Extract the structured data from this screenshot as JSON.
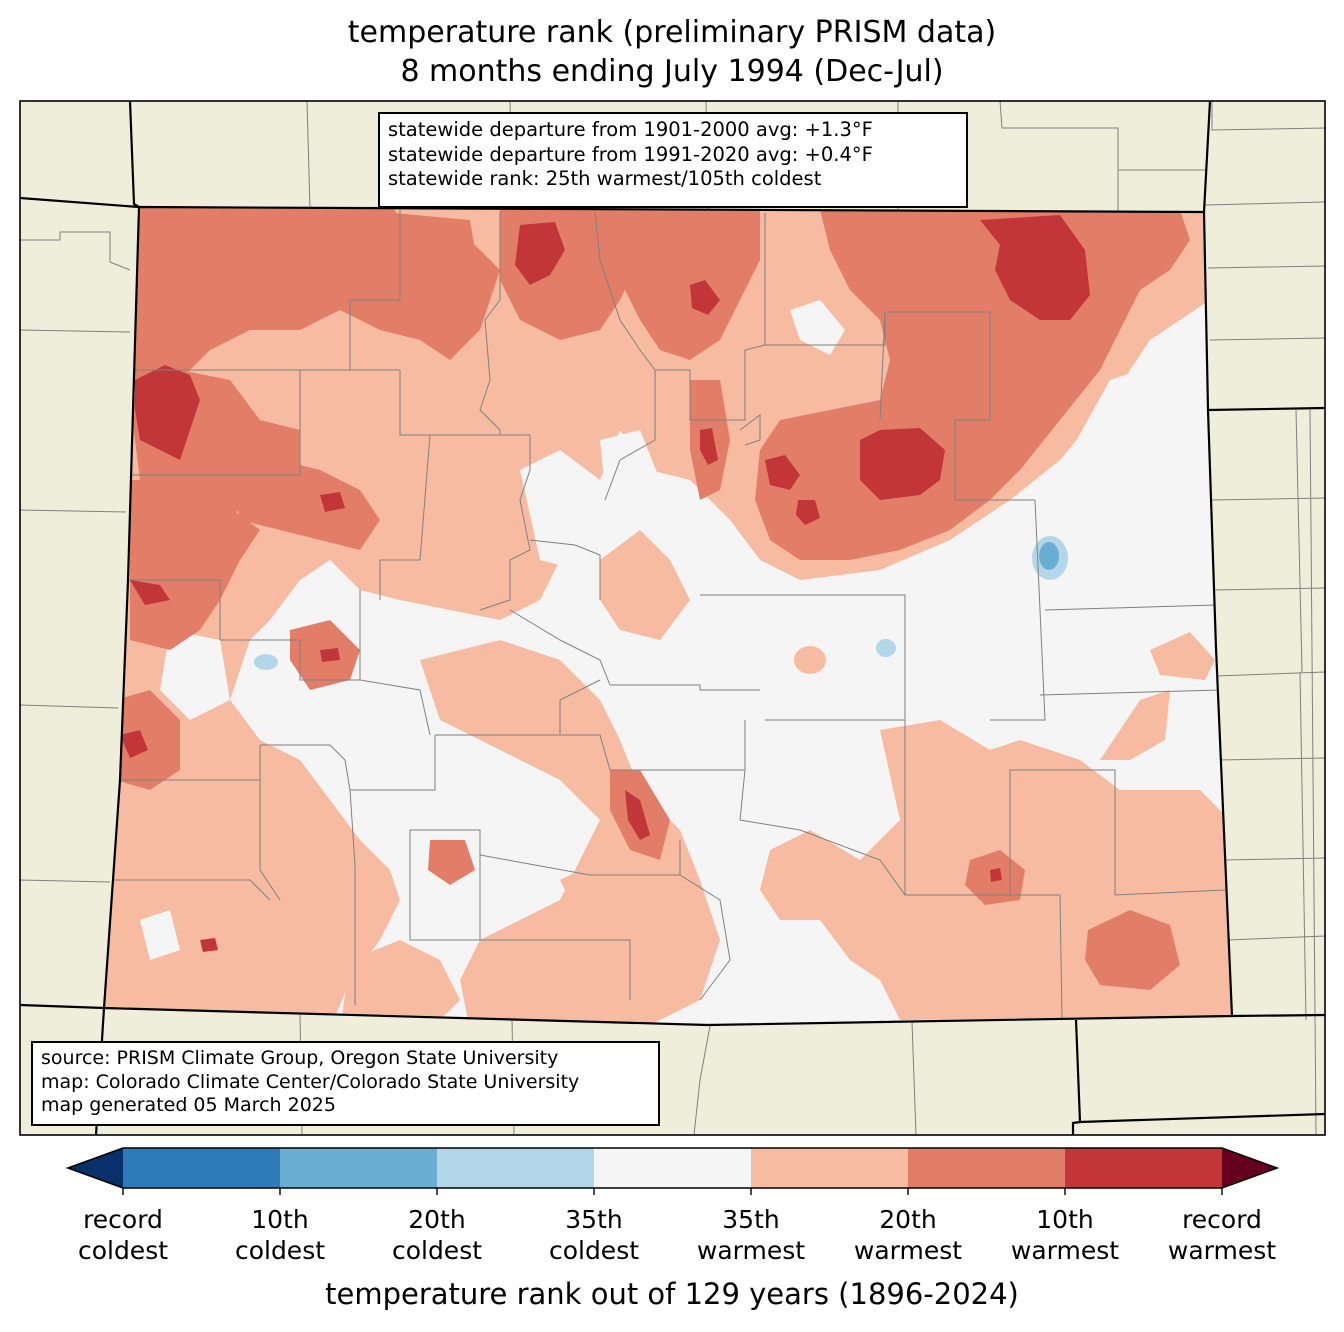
{
  "title": {
    "line1": "temperature rank (preliminary PRISM data)",
    "line2": "8 months ending July 1994 (Dec-Jul)"
  },
  "stats_box": {
    "line1": "statewide departure from 1901-2000 avg: +1.3°F",
    "line2": "statewide departure from 1991-2020 avg: +0.4°F",
    "line3": "statewide rank: 25th warmest/105th coldest"
  },
  "source_box": {
    "line1": "source: PRISM Climate Group, Oregon State University",
    "line2": "map: Colorado Climate Center/Colorado State University",
    "line3": "map generated 05 March 2025"
  },
  "colorbar": {
    "axis_label": "temperature rank out of 129 years (1896-2024)",
    "ticks": [
      {
        "l1": "record",
        "l2": "coldest"
      },
      {
        "l1": "10th",
        "l2": "coldest"
      },
      {
        "l1": "20th",
        "l2": "coldest"
      },
      {
        "l1": "35th",
        "l2": "coldest"
      },
      {
        "l1": "35th",
        "l2": "warmest"
      },
      {
        "l1": "20th",
        "l2": "warmest"
      },
      {
        "l1": "10th",
        "l2": "warmest"
      },
      {
        "l1": "record",
        "l2": "warmest"
      }
    ],
    "colors": [
      "#08306b",
      "#2f7ab8",
      "#6aafd3",
      "#b3d6e8",
      "#f5f5f5",
      "#f7bba1",
      "#e27e67",
      "#c23639",
      "#67001f"
    ]
  },
  "map_colors": {
    "background": "#efeedb",
    "near_normal": "#f5f5f5",
    "warm_35": "#f7bba1",
    "warm_20": "#e27e67",
    "warm_10": "#c23639",
    "cold_35": "#b3d6e8",
    "cold_20": "#6aafd3",
    "boundary": "#808080",
    "state_line": "#000000"
  }
}
